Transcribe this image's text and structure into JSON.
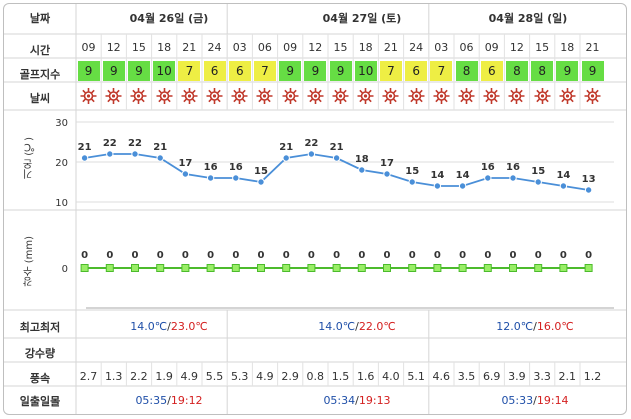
{
  "row_labels": {
    "date": "날짜",
    "time": "시간",
    "golf": "골프지수",
    "weather": "날씨",
    "temp": "기온 (℃)",
    "rain": "강수 (mm)",
    "maxmin": "최고최저",
    "precip": "강수량",
    "wind": "풍속",
    "sun": "일출일몰"
  },
  "days": [
    {
      "label": "04월 26일 (금)",
      "min": "14.0",
      "max": "23.0",
      "sunrise": "05:35",
      "sunset": "19:12"
    },
    {
      "label": "04월 27일 (토)",
      "min": "14.0",
      "max": "22.0",
      "sunrise": "05:34",
      "sunset": "19:13"
    },
    {
      "label": "04월 28일 (일)",
      "min": "12.0",
      "max": "16.0",
      "sunrise": "05:33",
      "sunset": "19:14"
    }
  ],
  "temp_unit": "℃",
  "temp_sep": "/",
  "sun_sep": "/",
  "hours": [
    "09",
    "12",
    "15",
    "18",
    "21",
    "24",
    "03",
    "06",
    "09",
    "12",
    "15",
    "18",
    "21",
    "24",
    "03",
    "06",
    "09",
    "12",
    "15",
    "18",
    "21"
  ],
  "golf_index": [
    9,
    9,
    9,
    10,
    7,
    6,
    6,
    7,
    9,
    9,
    9,
    10,
    7,
    6,
    7,
    8,
    6,
    8,
    8,
    9,
    9
  ],
  "colors": {
    "golf_green": "#66dd44",
    "golf_yellow": "#eeee44",
    "line": "#4a8fd8",
    "point": "#ffffff",
    "rain_line": "#4cbb2c",
    "rain_point": "#99ee66",
    "sun": "#c0392b"
  },
  "weather_icon": "sun-icon",
  "wind": [
    "2.7",
    "1.3",
    "2.2",
    "1.9",
    "4.9",
    "5.5",
    "5.3",
    "4.9",
    "2.9",
    "0.8",
    "1.5",
    "1.6",
    "4.0",
    "5.1",
    "4.6",
    "3.5",
    "6.9",
    "3.9",
    "3.3",
    "2.1",
    "1.2"
  ],
  "chart_data": [
    {
      "type": "line",
      "ylabel": "기온 (℃)",
      "yticks": [
        10,
        20,
        30
      ],
      "ylim": [
        10,
        30
      ],
      "categories": [
        "09",
        "12",
        "15",
        "18",
        "21",
        "24",
        "03",
        "06",
        "09",
        "12",
        "15",
        "18",
        "21",
        "24",
        "03",
        "06",
        "09",
        "12",
        "15",
        "18",
        "21"
      ],
      "values": [
        21,
        22,
        22,
        21,
        17,
        16,
        16,
        15,
        21,
        22,
        21,
        18,
        17,
        15,
        14,
        14,
        16,
        16,
        15,
        14,
        13
      ]
    },
    {
      "type": "line",
      "ylabel": "강수 (mm)",
      "yticks": [
        0
      ],
      "categories": [
        "09",
        "12",
        "15",
        "18",
        "21",
        "24",
        "03",
        "06",
        "09",
        "12",
        "15",
        "18",
        "21",
        "24",
        "03",
        "06",
        "09",
        "12",
        "15",
        "18",
        "21"
      ],
      "values": [
        0,
        0,
        0,
        0,
        0,
        0,
        0,
        0,
        0,
        0,
        0,
        0,
        0,
        0,
        0,
        0,
        0,
        0,
        0,
        0,
        0
      ]
    }
  ]
}
